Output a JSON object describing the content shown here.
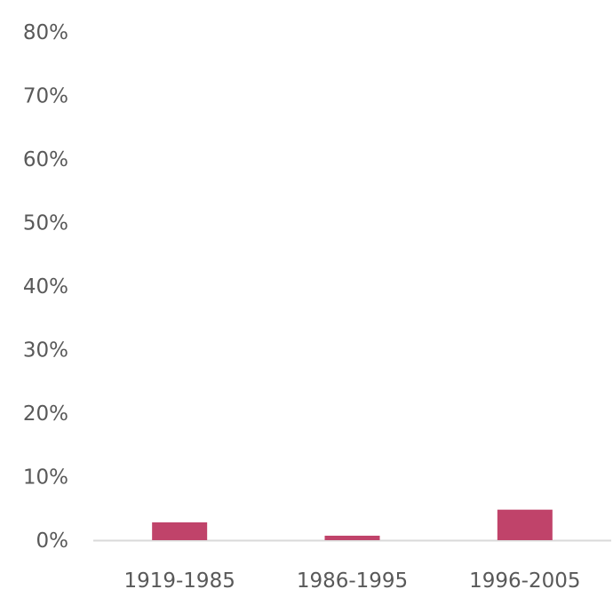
{
  "chart_data": {
    "type": "bar",
    "title": "",
    "xlabel": "",
    "ylabel": "",
    "categories": [
      "1919-1985",
      "1986-1995",
      "1996-2005"
    ],
    "values": [
      2.8,
      0.7,
      4.8
    ],
    "ylim": [
      0,
      80
    ],
    "yticks": [
      0,
      10,
      20,
      30,
      40,
      50,
      60,
      70,
      80
    ],
    "ytick_labels": [
      "0%",
      "10%",
      "20%",
      "30%",
      "40%",
      "50%",
      "60%",
      "70%",
      "80%"
    ],
    "grid": false,
    "legend": "none",
    "bar_color": "#c0436a",
    "axis_color": "#d9d9d9"
  }
}
